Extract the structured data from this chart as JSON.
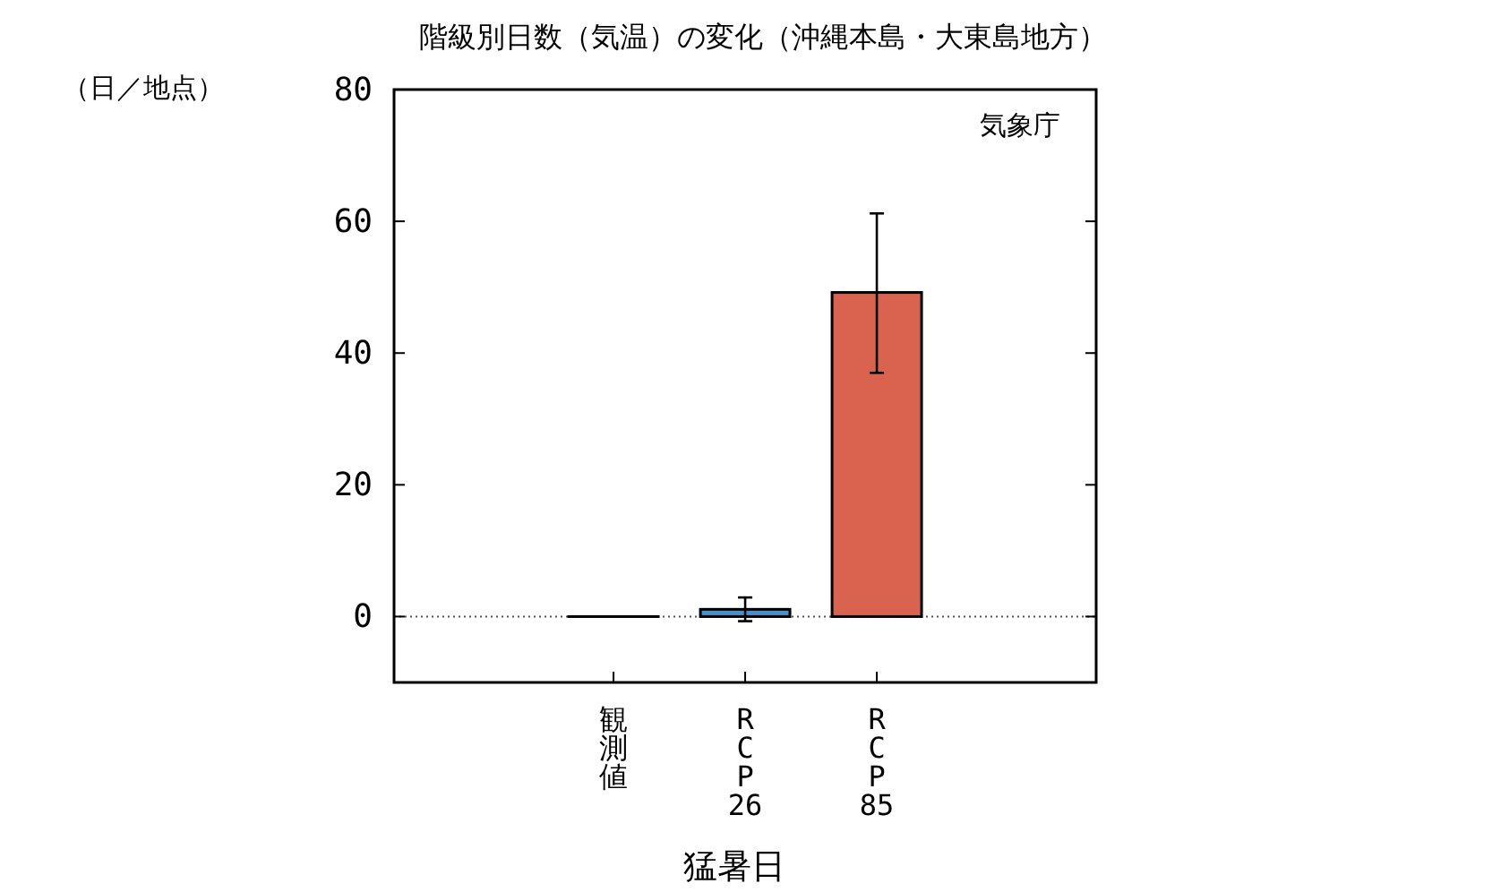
{
  "chart_data": {
    "type": "bar",
    "title": "階級別日数（気温）の変化（沖縄本島・大東島地方）",
    "ylabel": "（日／地点）",
    "xlabel": "猛暑日",
    "annotations": [
      "気象庁"
    ],
    "categories": [
      "観測値",
      "RCP26",
      "RCP85"
    ],
    "values": [
      0,
      1.1,
      49.2
    ],
    "colors": [
      "#000000",
      "#4a8ec8",
      "#d9634f"
    ],
    "errors": [
      null,
      [
        -0.7,
        2.9
      ],
      [
        37.0,
        61.2
      ]
    ],
    "ylim": [
      -10,
      80
    ],
    "yticks": [
      0,
      20,
      40,
      60,
      80
    ],
    "ref_lines": [
      {
        "axis": "y",
        "value": 0,
        "line_style": "dotted",
        "color": "#555555"
      }
    ],
    "grid": false
  }
}
